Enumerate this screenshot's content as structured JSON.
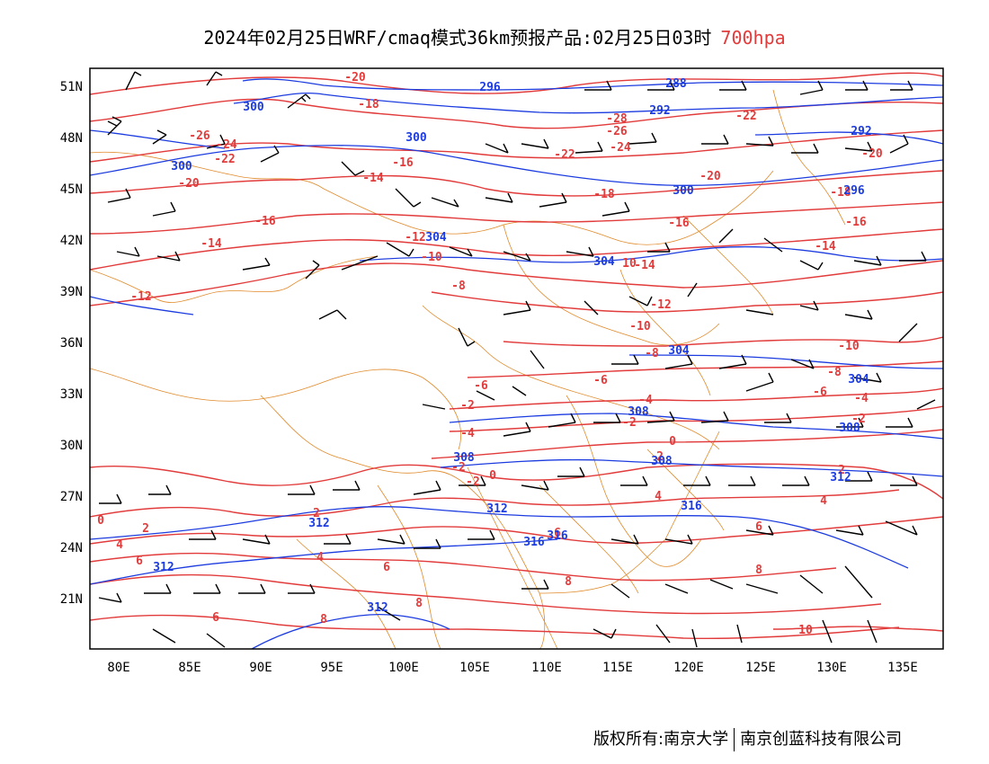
{
  "title": {
    "main": "2024年02月25日WRF/cmaq模式36km预报产品:02月25日03时",
    "level": "700hpa"
  },
  "axes": {
    "lat_labels": [
      "51N",
      "48N",
      "45N",
      "42N",
      "39N",
      "36N",
      "33N",
      "30N",
      "27N",
      "24N",
      "21N"
    ],
    "lon_labels": [
      "80E",
      "85E",
      "90E",
      "95E",
      "100E",
      "105E",
      "110E",
      "115E",
      "120E",
      "125E",
      "130E",
      "135E"
    ]
  },
  "temperature_labels": [
    "-20",
    "-18",
    "-26",
    "-24",
    "-22",
    "-20",
    "-16",
    "-14",
    "-16",
    "-14",
    "-12",
    "-10",
    "-18",
    "-28",
    "-26",
    "-24",
    "-22",
    "-20",
    "-18",
    "-16",
    "-14",
    "-12",
    "-10",
    "-8",
    "-6",
    "-4",
    "-2",
    "0",
    "2",
    "4",
    "6",
    "8",
    "10",
    "-20",
    "-22",
    "-16",
    "-14",
    "-10",
    "-8",
    "-6",
    "-4",
    "-2",
    "2",
    "4",
    "6",
    "8",
    "10",
    "-12",
    "-8",
    "-6",
    "-4",
    "-2",
    "0",
    "2",
    "4",
    "6",
    "8",
    "0",
    "2",
    "4",
    "6",
    "8",
    "-2",
    "2",
    "-2"
  ],
  "height_labels": [
    "296",
    "288",
    "292",
    "300",
    "300",
    "304",
    "304",
    "304",
    "308",
    "308",
    "308",
    "312",
    "312",
    "312",
    "316",
    "316",
    "300",
    "292",
    "296",
    "300",
    "304",
    "308",
    "312",
    "312",
    "316"
  ],
  "colors": {
    "temperature": "#e23b3b",
    "height": "#1c3ce0",
    "boundary": "#e08a2a",
    "wind": "#000000"
  },
  "footer": {
    "left": "版权所有:南京大学",
    "right": "南京创蓝科技有限公司"
  }
}
